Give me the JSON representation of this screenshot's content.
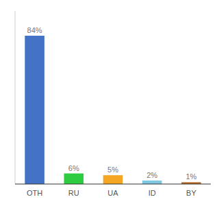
{
  "chart_data": {
    "type": "bar",
    "categories": [
      "OTH",
      "RU",
      "UA",
      "ID",
      "BY"
    ],
    "values": [
      84,
      6,
      5,
      2,
      1
    ],
    "value_labels": [
      "84%",
      "6%",
      "5%",
      "2%",
      "1%"
    ],
    "colors": [
      "#4472c4",
      "#2ecc40",
      "#f5a623",
      "#7ec8e3",
      "#b5651d"
    ],
    "ylim": [
      0,
      98
    ],
    "data_labels": true,
    "tick_labels": "x"
  }
}
